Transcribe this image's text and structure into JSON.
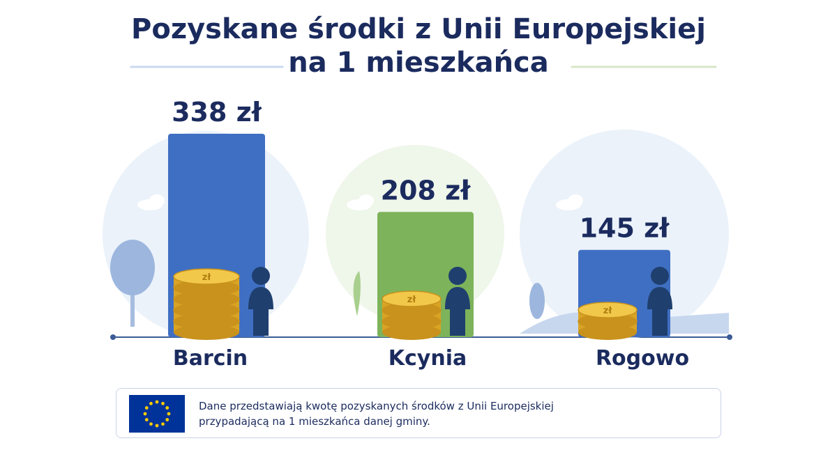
{
  "title_line1": "Pozyskane środki z Unii Europejskiej",
  "title_line2": "na 1 mieszkańca",
  "note": {
    "line1": "Dane przedstawiają kwotę pozyskanych środków z Unii Europejskiej",
    "line2": "przypadającą na 1 mieszkańca danej gminy.",
    "flag_icon": "eu-flag-icon"
  },
  "colors": {
    "title": "#1b2b5e",
    "bar_blue": "#3f6fc2",
    "bar_green": "#7db35a",
    "coin": "#e9b93a",
    "person": "#1f3f6e"
  },
  "chart_data": {
    "type": "bar",
    "title": "Pozyskane środki z Unii Europejskiej na 1 mieszkańca",
    "categories": [
      "Barcin",
      "Kcynia",
      "Rogowo"
    ],
    "values": [
      338,
      208,
      145
    ],
    "value_labels": [
      "338 zł",
      "208 zł",
      "145 zł"
    ],
    "unit": "zł",
    "bar_colors": [
      "#3f6fc2",
      "#7db35a",
      "#3f6fc2"
    ],
    "coin_stack_counts": [
      5,
      3,
      2
    ],
    "ylim": [
      0,
      338
    ],
    "grid": false,
    "legend": "none"
  }
}
